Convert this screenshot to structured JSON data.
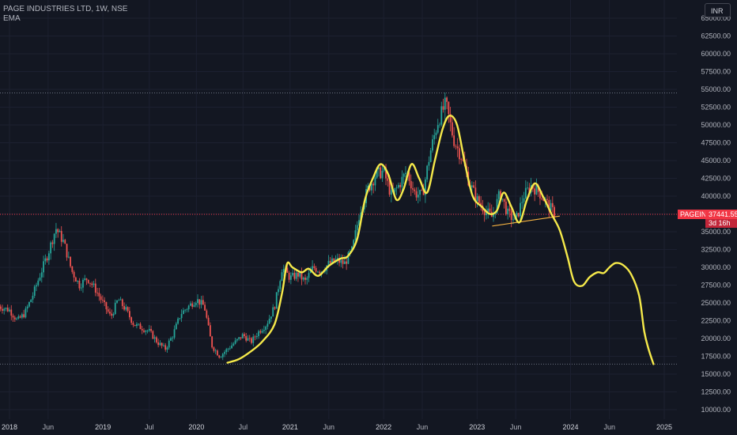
{
  "legend": {
    "title": "PAGE INDUSTRIES LTD, 1W, NSE",
    "indicator": "EMA"
  },
  "currency": "INR",
  "price_tag": {
    "symbol": "PAGEIND",
    "price": "37441.55",
    "countdown": "3d 16h"
  },
  "colors": {
    "background": "#131722",
    "up": "#26a69a",
    "down": "#ef5350",
    "ema": "#f5e94a",
    "current_price_line": "#f23645",
    "trendline": "#f5b342",
    "hline": "#6b7280",
    "grid": "#1c2030"
  },
  "chart_data": {
    "type": "candlestick",
    "title": "PAGE INDUSTRIES LTD, 1W, NSE",
    "timeframe": "1W",
    "symbol": "PAGEIND",
    "exchange": "NSE",
    "ylim": [
      9000,
      66000
    ],
    "xlim": [
      "2018-01-01",
      "2025-06-01"
    ],
    "y_ticks": [
      10000,
      12500,
      15000,
      17500,
      20000,
      22500,
      25000,
      27500,
      30000,
      32500,
      35000,
      37500,
      40000,
      42500,
      45000,
      47500,
      50000,
      52500,
      55000,
      57500,
      60000,
      62500,
      65000
    ],
    "y_tick_labels": [
      "10000.00",
      "12500.00",
      "15000.00",
      "17500.00",
      "20000.00",
      "22500.00",
      "25000.00",
      "27500.00",
      "30000.00",
      "32500.00",
      "35000.00",
      "37500.00",
      "40000.00",
      "42500.00",
      "45000.00",
      "47500.00",
      "50000.00",
      "52500.00",
      "55000.00",
      "57500.00",
      "60000.00",
      "62500.00",
      "65000.00"
    ],
    "x_ticks": [
      {
        "date": "2018-01-01",
        "label": "2018",
        "year": true
      },
      {
        "date": "2018-06-01",
        "label": "Jun",
        "year": false
      },
      {
        "date": "2019-01-01",
        "label": "2019",
        "year": true
      },
      {
        "date": "2019-07-01",
        "label": "Jul",
        "year": false
      },
      {
        "date": "2020-01-01",
        "label": "2020",
        "year": true
      },
      {
        "date": "2020-07-01",
        "label": "Jul",
        "year": false
      },
      {
        "date": "2021-01-01",
        "label": "2021",
        "year": true
      },
      {
        "date": "2021-06-01",
        "label": "Jun",
        "year": false
      },
      {
        "date": "2022-01-01",
        "label": "2022",
        "year": true
      },
      {
        "date": "2022-06-01",
        "label": "Jun",
        "year": false
      },
      {
        "date": "2023-01-01",
        "label": "2023",
        "year": true
      },
      {
        "date": "2023-06-01",
        "label": "Jun",
        "year": false
      },
      {
        "date": "2024-01-01",
        "label": "2024",
        "year": true
      },
      {
        "date": "2024-06-01",
        "label": "Jun",
        "year": false
      },
      {
        "date": "2025-01-01",
        "label": "2025",
        "year": true
      }
    ],
    "current_price": 37441.55,
    "horizontal_lines": [
      54500,
      16400
    ],
    "trendline": [
      [
        "2023-03-01",
        35800
      ],
      [
        "2023-11-20",
        37200
      ]
    ],
    "price_path": [
      [
        "2017-11-20",
        24500
      ],
      [
        "2018-01-01",
        24000
      ],
      [
        "2018-02-01",
        22500
      ],
      [
        "2018-03-01",
        23500
      ],
      [
        "2018-04-01",
        26000
      ],
      [
        "2018-05-01",
        29000
      ],
      [
        "2018-06-01",
        32000
      ],
      [
        "2018-07-01",
        35500
      ],
      [
        "2018-08-01",
        33500
      ],
      [
        "2018-09-01",
        29500
      ],
      [
        "2018-10-01",
        27500
      ],
      [
        "2018-11-01",
        28500
      ],
      [
        "2018-12-01",
        27000
      ],
      [
        "2019-01-01",
        25000
      ],
      [
        "2019-02-01",
        23000
      ],
      [
        "2019-03-01",
        25500
      ],
      [
        "2019-04-01",
        24000
      ],
      [
        "2019-05-01",
        22000
      ],
      [
        "2019-06-01",
        21500
      ],
      [
        "2019-07-01",
        21000
      ],
      [
        "2019-08-01",
        19500
      ],
      [
        "2019-09-01",
        18500
      ],
      [
        "2019-10-01",
        20500
      ],
      [
        "2019-11-01",
        23500
      ],
      [
        "2019-12-01",
        24500
      ],
      [
        "2020-01-01",
        25500
      ],
      [
        "2020-02-01",
        24500
      ],
      [
        "2020-03-01",
        19000
      ],
      [
        "2020-04-01",
        17500
      ],
      [
        "2020-05-01",
        18500
      ],
      [
        "2020-06-01",
        19500
      ],
      [
        "2020-07-01",
        20500
      ],
      [
        "2020-08-01",
        19500
      ],
      [
        "2020-09-01",
        21000
      ],
      [
        "2020-10-01",
        22000
      ],
      [
        "2020-11-01",
        24500
      ],
      [
        "2020-12-01",
        30000
      ],
      [
        "2021-01-01",
        28500
      ],
      [
        "2021-02-01",
        29000
      ],
      [
        "2021-03-01",
        28000
      ],
      [
        "2021-04-01",
        30000
      ],
      [
        "2021-05-01",
        29500
      ],
      [
        "2021-06-01",
        30500
      ],
      [
        "2021-07-01",
        31000
      ],
      [
        "2021-08-01",
        30500
      ],
      [
        "2021-09-01",
        32500
      ],
      [
        "2021-10-01",
        38000
      ],
      [
        "2021-11-01",
        41000
      ],
      [
        "2021-12-01",
        43000
      ],
      [
        "2022-01-01",
        43500
      ],
      [
        "2022-02-01",
        40000
      ],
      [
        "2022-03-01",
        41500
      ],
      [
        "2022-04-01",
        43500
      ],
      [
        "2022-05-01",
        40500
      ],
      [
        "2022-06-01",
        40000
      ],
      [
        "2022-07-01",
        46000
      ],
      [
        "2022-08-01",
        50500
      ],
      [
        "2022-09-01",
        53000
      ],
      [
        "2022-10-01",
        48000
      ],
      [
        "2022-11-01",
        45500
      ],
      [
        "2022-12-01",
        42000
      ],
      [
        "2023-01-01",
        39500
      ],
      [
        "2023-02-01",
        38000
      ],
      [
        "2023-03-01",
        37000
      ],
      [
        "2023-04-01",
        40500
      ],
      [
        "2023-05-01",
        37500
      ],
      [
        "2023-06-01",
        36500
      ],
      [
        "2023-07-01",
        40000
      ],
      [
        "2023-08-01",
        41500
      ],
      [
        "2023-09-01",
        40500
      ],
      [
        "2023-10-01",
        39000
      ],
      [
        "2023-11-01",
        37441
      ]
    ],
    "ema_path": [
      [
        "2020-05-01",
        16600
      ],
      [
        "2020-06-15",
        17100
      ],
      [
        "2020-08-01",
        18200
      ],
      [
        "2020-09-15",
        19600
      ],
      [
        "2020-11-01",
        22000
      ],
      [
        "2020-12-01",
        26500
      ],
      [
        "2020-12-20",
        30500
      ],
      [
        "2021-01-10",
        30000
      ],
      [
        "2021-02-15",
        29300
      ],
      [
        "2021-03-15",
        29800
      ],
      [
        "2021-04-20",
        28800
      ],
      [
        "2021-06-01",
        30200
      ],
      [
        "2021-07-15",
        31200
      ],
      [
        "2021-08-15",
        31600
      ],
      [
        "2021-09-20",
        34000
      ],
      [
        "2021-10-20",
        39500
      ],
      [
        "2021-11-20",
        42500
      ],
      [
        "2021-12-20",
        44500
      ],
      [
        "2022-01-20",
        43000
      ],
      [
        "2022-02-20",
        39500
      ],
      [
        "2022-03-20",
        41000
      ],
      [
        "2022-04-20",
        44500
      ],
      [
        "2022-05-20",
        42500
      ],
      [
        "2022-06-20",
        40500
      ],
      [
        "2022-07-20",
        45000
      ],
      [
        "2022-08-20",
        49500
      ],
      [
        "2022-09-15",
        51300
      ],
      [
        "2022-10-15",
        50000
      ],
      [
        "2022-11-15",
        44500
      ],
      [
        "2022-12-15",
        40000
      ],
      [
        "2023-01-20",
        38500
      ],
      [
        "2023-02-20",
        37500
      ],
      [
        "2023-03-20",
        38000
      ],
      [
        "2023-04-15",
        40500
      ],
      [
        "2023-05-15",
        38500
      ],
      [
        "2023-06-15",
        36300
      ],
      [
        "2023-07-15",
        39500
      ],
      [
        "2023-08-15",
        41800
      ],
      [
        "2023-09-15",
        40000
      ],
      [
        "2023-10-20",
        37400
      ],
      [
        "2023-11-20",
        35200
      ],
      [
        "2023-12-20",
        31500
      ],
      [
        "2024-01-15",
        28000
      ],
      [
        "2024-02-15",
        27400
      ],
      [
        "2024-03-15",
        28600
      ],
      [
        "2024-04-15",
        29300
      ],
      [
        "2024-05-10",
        29200
      ],
      [
        "2024-06-01",
        30000
      ],
      [
        "2024-06-25",
        30600
      ],
      [
        "2024-07-25",
        30300
      ],
      [
        "2024-08-25",
        29000
      ],
      [
        "2024-09-25",
        26000
      ],
      [
        "2024-10-15",
        21000
      ],
      [
        "2024-11-01",
        18500
      ],
      [
        "2024-11-20",
        16400
      ]
    ]
  }
}
